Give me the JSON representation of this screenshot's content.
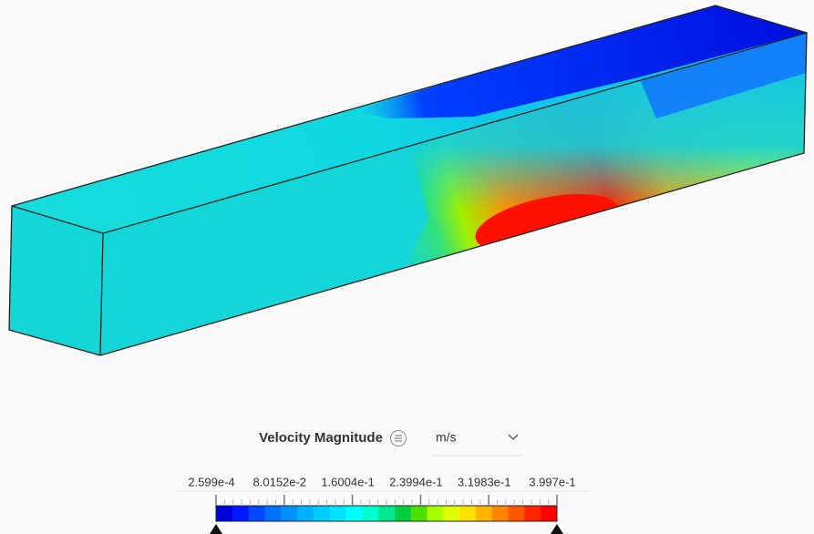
{
  "legend": {
    "title": "Velocity Magnitude",
    "unit": "m/s",
    "labels": [
      "2.599e-4",
      "8.0152e-2",
      "1.6004e-1",
      "2.3994e-1",
      "3.1983e-1",
      "3.997e-1"
    ]
  }
}
